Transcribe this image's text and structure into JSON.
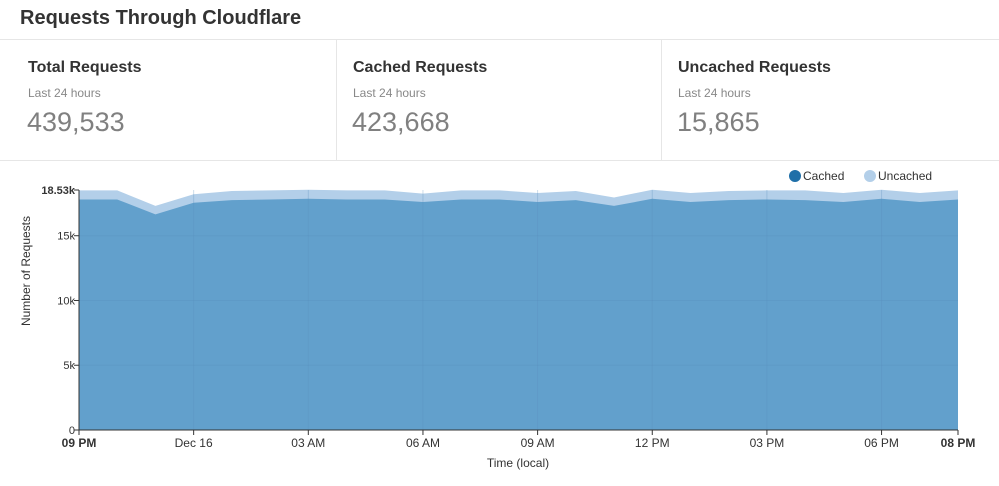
{
  "header": {
    "title": "Requests Through Cloudflare"
  },
  "stats": [
    {
      "title": "Total Requests",
      "period": "Last 24 hours",
      "value": "439,533"
    },
    {
      "title": "Cached Requests",
      "period": "Last 24 hours",
      "value": "423,668"
    },
    {
      "title": "Uncached Requests",
      "period": "Last 24 hours",
      "value": "15,865"
    }
  ],
  "colors": {
    "cached": "#62a0cc",
    "cached_legend": "#1f6fa8",
    "uncached": "#b3cfe9",
    "grid": "#5a90bd"
  },
  "chart_data": {
    "type": "area",
    "stacked": true,
    "xlabel": "Time (local)",
    "ylabel": "Number of Requests",
    "x_ticks": [
      "09 PM",
      "Dec 16",
      "03 AM",
      "06 AM",
      "09 AM",
      "12 PM",
      "03 PM",
      "06 PM",
      "08 PM"
    ],
    "y_ticks": [
      "0",
      "5k",
      "10k",
      "15k",
      "18.53k"
    ],
    "ylim": [
      0,
      18530
    ],
    "legend": {
      "position": "top-right",
      "items": [
        "Cached",
        "Uncached"
      ]
    },
    "x_hours": [
      0,
      1,
      2,
      3,
      4,
      5,
      6,
      7,
      8,
      9,
      10,
      11,
      12,
      13,
      14,
      15,
      16,
      17,
      18,
      19,
      20,
      21,
      22,
      23
    ],
    "series": [
      {
        "name": "Cached",
        "values": [
          17800,
          17800,
          16650,
          17550,
          17750,
          17800,
          17850,
          17800,
          17800,
          17600,
          17800,
          17800,
          17600,
          17750,
          17300,
          17850,
          17600,
          17750,
          17800,
          17750,
          17600,
          17850,
          17600,
          17800
        ]
      },
      {
        "name": "Uncached",
        "values": [
          700,
          700,
          650,
          650,
          700,
          700,
          700,
          700,
          700,
          650,
          700,
          700,
          700,
          700,
          650,
          700,
          700,
          700,
          700,
          750,
          700,
          700,
          700,
          700
        ]
      }
    ]
  }
}
